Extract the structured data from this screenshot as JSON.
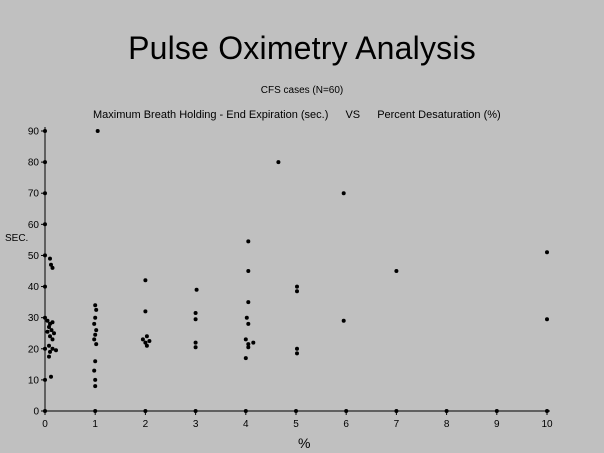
{
  "title": "Pulse Oximetry Analysis",
  "subtitle": "CFS cases (N=60)",
  "caption": {
    "left": "Maximum Breath Holding - End Expiration (sec.)",
    "vs": "VS",
    "right": "Percent Desaturation (%)"
  },
  "chart_data": {
    "type": "scatter",
    "xlabel": "%",
    "ylabel": "SEC.",
    "xlim": [
      0,
      10
    ],
    "ylim": [
      0,
      90
    ],
    "xticks": [
      0,
      1,
      2,
      3,
      4,
      5,
      6,
      7,
      8,
      9,
      10
    ],
    "yticks": [
      0,
      10,
      20,
      30,
      40,
      50,
      60,
      70,
      80,
      90
    ],
    "grid": false,
    "legend": "none",
    "colors": {
      "background": "#c0c0c0",
      "marker": "#000000",
      "axis": "#000000"
    },
    "points": [
      {
        "x": 0,
        "y": 90
      },
      {
        "x": 0,
        "y": 80
      },
      {
        "x": 0,
        "y": 70
      },
      {
        "x": 0,
        "y": 60
      },
      {
        "x": 0,
        "y": 50
      },
      {
        "x": 0,
        "y": 40
      },
      {
        "x": 0,
        "y": 30
      },
      {
        "x": 0,
        "y": 20
      },
      {
        "x": 0,
        "y": 10
      },
      {
        "x": 0,
        "y": 0
      },
      {
        "x": 0.1,
        "y": 49
      },
      {
        "x": 0.12,
        "y": 47
      },
      {
        "x": 0.15,
        "y": 46
      },
      {
        "x": 0.05,
        "y": 29
      },
      {
        "x": 0.1,
        "y": 28
      },
      {
        "x": 0.15,
        "y": 28.5
      },
      {
        "x": 0.08,
        "y": 27
      },
      {
        "x": 0.13,
        "y": 26
      },
      {
        "x": 0.05,
        "y": 25.5
      },
      {
        "x": 0.18,
        "y": 25
      },
      {
        "x": 0.1,
        "y": 24
      },
      {
        "x": 0.15,
        "y": 23
      },
      {
        "x": 0.08,
        "y": 21
      },
      {
        "x": 0.15,
        "y": 20
      },
      {
        "x": 0.1,
        "y": 19
      },
      {
        "x": 0.22,
        "y": 19.5
      },
      {
        "x": 0.08,
        "y": 17.5
      },
      {
        "x": 0.12,
        "y": 11
      },
      {
        "x": 1.05,
        "y": 90
      },
      {
        "x": 1.0,
        "y": 34
      },
      {
        "x": 1.02,
        "y": 32.5
      },
      {
        "x": 1.0,
        "y": 30
      },
      {
        "x": 0.98,
        "y": 28
      },
      {
        "x": 1.02,
        "y": 26
      },
      {
        "x": 1.0,
        "y": 24.5
      },
      {
        "x": 0.98,
        "y": 23
      },
      {
        "x": 1.02,
        "y": 21.5
      },
      {
        "x": 1.0,
        "y": 16
      },
      {
        "x": 0.98,
        "y": 13
      },
      {
        "x": 1.0,
        "y": 10
      },
      {
        "x": 1.0,
        "y": 8
      },
      {
        "x": 2.0,
        "y": 42
      },
      {
        "x": 2.0,
        "y": 32
      },
      {
        "x": 1.95,
        "y": 23
      },
      {
        "x": 2.03,
        "y": 24
      },
      {
        "x": 2.0,
        "y": 22
      },
      {
        "x": 2.08,
        "y": 22.5
      },
      {
        "x": 2.03,
        "y": 21
      },
      {
        "x": 3.02,
        "y": 39
      },
      {
        "x": 3.0,
        "y": 31.5
      },
      {
        "x": 3.0,
        "y": 29.5
      },
      {
        "x": 3.0,
        "y": 22
      },
      {
        "x": 3.0,
        "y": 20.5
      },
      {
        "x": 4.05,
        "y": 54.5
      },
      {
        "x": 4.05,
        "y": 45
      },
      {
        "x": 4.05,
        "y": 35
      },
      {
        "x": 4.02,
        "y": 30
      },
      {
        "x": 4.05,
        "y": 28
      },
      {
        "x": 4.0,
        "y": 23
      },
      {
        "x": 4.05,
        "y": 21.5
      },
      {
        "x": 4.15,
        "y": 22
      },
      {
        "x": 4.05,
        "y": 20.5
      },
      {
        "x": 4.0,
        "y": 17
      },
      {
        "x": 4.65,
        "y": 80
      },
      {
        "x": 5.02,
        "y": 40
      },
      {
        "x": 5.02,
        "y": 38.5
      },
      {
        "x": 5.02,
        "y": 20
      },
      {
        "x": 5.02,
        "y": 18.5
      },
      {
        "x": 5.95,
        "y": 70
      },
      {
        "x": 5.95,
        "y": 29
      },
      {
        "x": 7.0,
        "y": 45
      },
      {
        "x": 10.0,
        "y": 51
      },
      {
        "x": 10.0,
        "y": 29.5
      },
      {
        "x": 1,
        "y": 0
      },
      {
        "x": 2,
        "y": 0
      },
      {
        "x": 3,
        "y": 0
      },
      {
        "x": 4,
        "y": 0
      },
      {
        "x": 5,
        "y": 0
      },
      {
        "x": 6,
        "y": 0
      },
      {
        "x": 7,
        "y": 0
      },
      {
        "x": 8,
        "y": 0
      },
      {
        "x": 9,
        "y": 0
      },
      {
        "x": 10,
        "y": 0
      }
    ]
  }
}
